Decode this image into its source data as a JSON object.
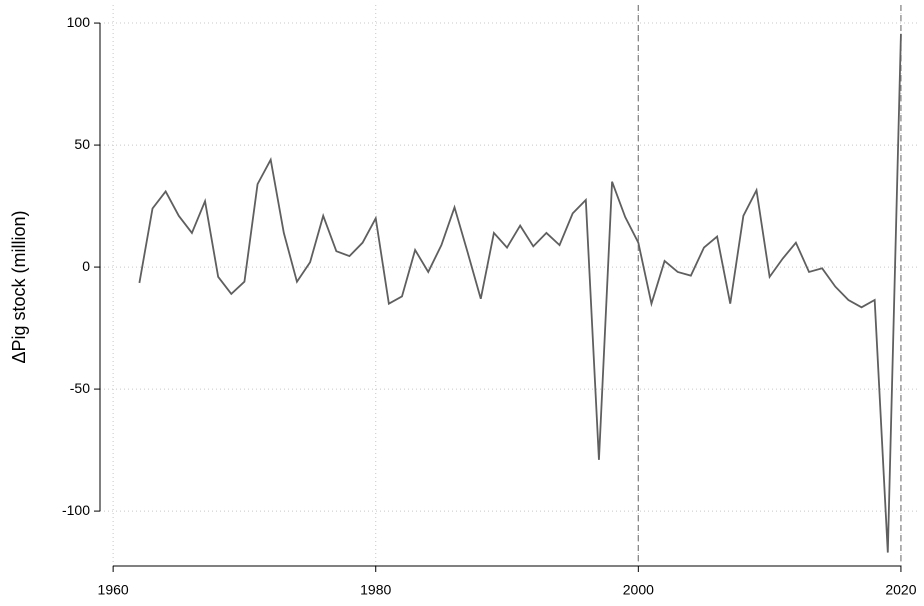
{
  "chart_data": {
    "type": "line",
    "ylabel": "ΔPig stock (million)",
    "x": [
      1962,
      1963,
      1964,
      1965,
      1966,
      1967,
      1968,
      1969,
      1970,
      1971,
      1972,
      1973,
      1974,
      1975,
      1976,
      1977,
      1978,
      1979,
      1980,
      1981,
      1982,
      1983,
      1984,
      1985,
      1986,
      1987,
      1988,
      1989,
      1990,
      1991,
      1992,
      1993,
      1994,
      1995,
      1996,
      1997,
      1998,
      1999,
      2000,
      2001,
      2002,
      2003,
      2004,
      2005,
      2006,
      2007,
      2008,
      2009,
      2010,
      2011,
      2012,
      2013,
      2014,
      2015,
      2016,
      2017,
      2018,
      2019,
      2020
    ],
    "series": [
      {
        "name": "ΔPig stock",
        "color": "#5f5f5f",
        "values": [
          -6.5,
          24,
          31,
          21,
          14,
          27,
          -4,
          -11,
          -6,
          34,
          44,
          14,
          -6,
          2,
          21,
          6.5,
          4.5,
          10,
          20,
          -15,
          -12,
          7,
          -2,
          9,
          24.5,
          6,
          -13,
          14,
          8,
          17,
          8.5,
          14,
          9,
          22,
          27.5,
          -79,
          35,
          20.5,
          10,
          -15,
          2.5,
          -2,
          -3.5,
          8,
          12.5,
          -15,
          21,
          31.5,
          -4,
          3.5,
          10,
          -2,
          -0.5,
          -8,
          -13.5,
          -16.5,
          -13.5,
          -117,
          95.5
        ]
      }
    ],
    "xlim": [
      1959,
      2021.3
    ],
    "ylim": [
      -122.5,
      107.4
    ],
    "xticks": [
      1960,
      1980,
      2000,
      2020
    ],
    "yticks": [
      -100,
      -50,
      0,
      50,
      100
    ],
    "grid": true,
    "vlines": [
      2000,
      2020
    ]
  }
}
